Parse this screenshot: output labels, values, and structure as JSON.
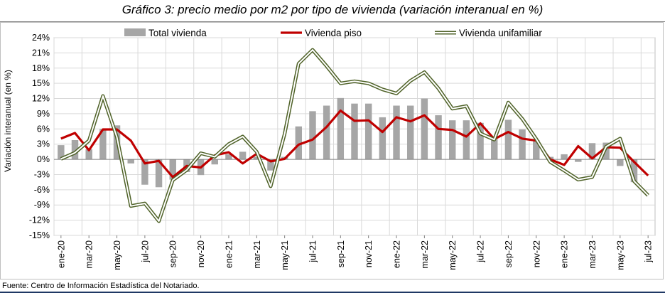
{
  "title": "Gráfico 3: precio medio por m2 por tipo de vivienda (variación interanual en %)",
  "source": "Fuente: Centro de Información Estadística del Notariado.",
  "chart_data": {
    "type": "bar+line",
    "ylabel": "Variación interanual (en %)",
    "xlabel": "",
    "ylim": [
      -15,
      24
    ],
    "yticks": [
      24,
      21,
      18,
      15,
      12,
      9,
      6,
      3,
      0,
      -3,
      -6,
      -9,
      -12,
      -15
    ],
    "ytick_labels": [
      "24%",
      "21%",
      "18%",
      "15%",
      "12%",
      "9%",
      "6%",
      "3%",
      "0%",
      "-3%",
      "-6%",
      "-9%",
      "-12%",
      "-15%"
    ],
    "grid": true,
    "legend_position": "top",
    "categories": [
      "ene-20",
      "feb-20",
      "mar-20",
      "abr-20",
      "may-20",
      "jun-20",
      "jul-20",
      "ago-20",
      "sep-20",
      "oct-20",
      "nov-20",
      "dic-20",
      "ene-21",
      "feb-21",
      "mar-21",
      "abr-21",
      "may-21",
      "jun-21",
      "jul-21",
      "ago-21",
      "sep-21",
      "oct-21",
      "nov-21",
      "dic-21",
      "ene-22",
      "feb-22",
      "mar-22",
      "abr-22",
      "may-22",
      "jun-22",
      "jul-22",
      "ago-22",
      "sep-22",
      "oct-22",
      "nov-22",
      "dic-22",
      "ene-23",
      "feb-23",
      "mar-23",
      "abr-23",
      "may-23",
      "jun-23",
      "jul-23"
    ],
    "tick_labels": [
      "ene-20",
      "mar-20",
      "may-20",
      "jul-20",
      "sep-20",
      "nov-20",
      "ene-21",
      "mar-21",
      "may-21",
      "jul-21",
      "sep-21",
      "nov-21",
      "ene-22",
      "mar-22",
      "may-22",
      "jul-22",
      "sep-22",
      "nov-22",
      "ene-23",
      "mar-23",
      "may-23",
      "jul-23"
    ],
    "series": [
      {
        "name": "Total vivienda",
        "type": "bar",
        "color": "#a6a6a6",
        "values": [
          2.8,
          3.8,
          2.0,
          6.0,
          6.7,
          -0.8,
          -5.0,
          -5.5,
          -4.0,
          -2.5,
          -3.1,
          -1.0,
          1.0,
          1.5,
          0.5,
          -2.2,
          0.5,
          6.5,
          9.5,
          10.6,
          12.1,
          11.0,
          11.0,
          8.3,
          10.6,
          10.6,
          12.0,
          8.7,
          7.7,
          7.7,
          7.2,
          4.0,
          7.8,
          5.9,
          3.8,
          0.5,
          1.0,
          -0.5,
          3.2,
          3.3,
          -1.3,
          -4.5,
          0
        ]
      },
      {
        "name": "Vivienda piso",
        "type": "line",
        "color": "#c00000",
        "values": [
          4.1,
          5.2,
          1.8,
          5.9,
          5.9,
          3.7,
          -0.8,
          -0.3,
          -3.5,
          -1.3,
          -1.6,
          0.8,
          1.4,
          -0.8,
          1.1,
          -0.4,
          0.1,
          2.9,
          3.9,
          6.4,
          9.6,
          7.6,
          7.7,
          5.4,
          8.3,
          7.5,
          8.7,
          6.0,
          5.8,
          4.5,
          7.1,
          4.0,
          5.4,
          4.1,
          3.7,
          0.0,
          -1.1,
          2.6,
          0.2,
          2.4,
          2.3,
          -0.5,
          -3.2
        ]
      },
      {
        "name": "Vivienda unifamiliar",
        "type": "line",
        "color": "#4f6228",
        "values": [
          0.1,
          1.3,
          3.7,
          12.5,
          4.4,
          -9.2,
          -8.7,
          -12.2,
          -4.1,
          -2.1,
          1.2,
          0.5,
          3.0,
          4.5,
          1.5,
          -5.3,
          5.0,
          18.9,
          21.6,
          18.4,
          15.0,
          15.4,
          15.0,
          13.8,
          13.0,
          15.5,
          17.2,
          14.0,
          10.0,
          10.5,
          5.1,
          3.9,
          11.2,
          8.0,
          4.0,
          -0.5,
          -2.2,
          -4.0,
          -3.5,
          2.5,
          4.1,
          -4.3,
          -7.1
        ]
      }
    ]
  }
}
